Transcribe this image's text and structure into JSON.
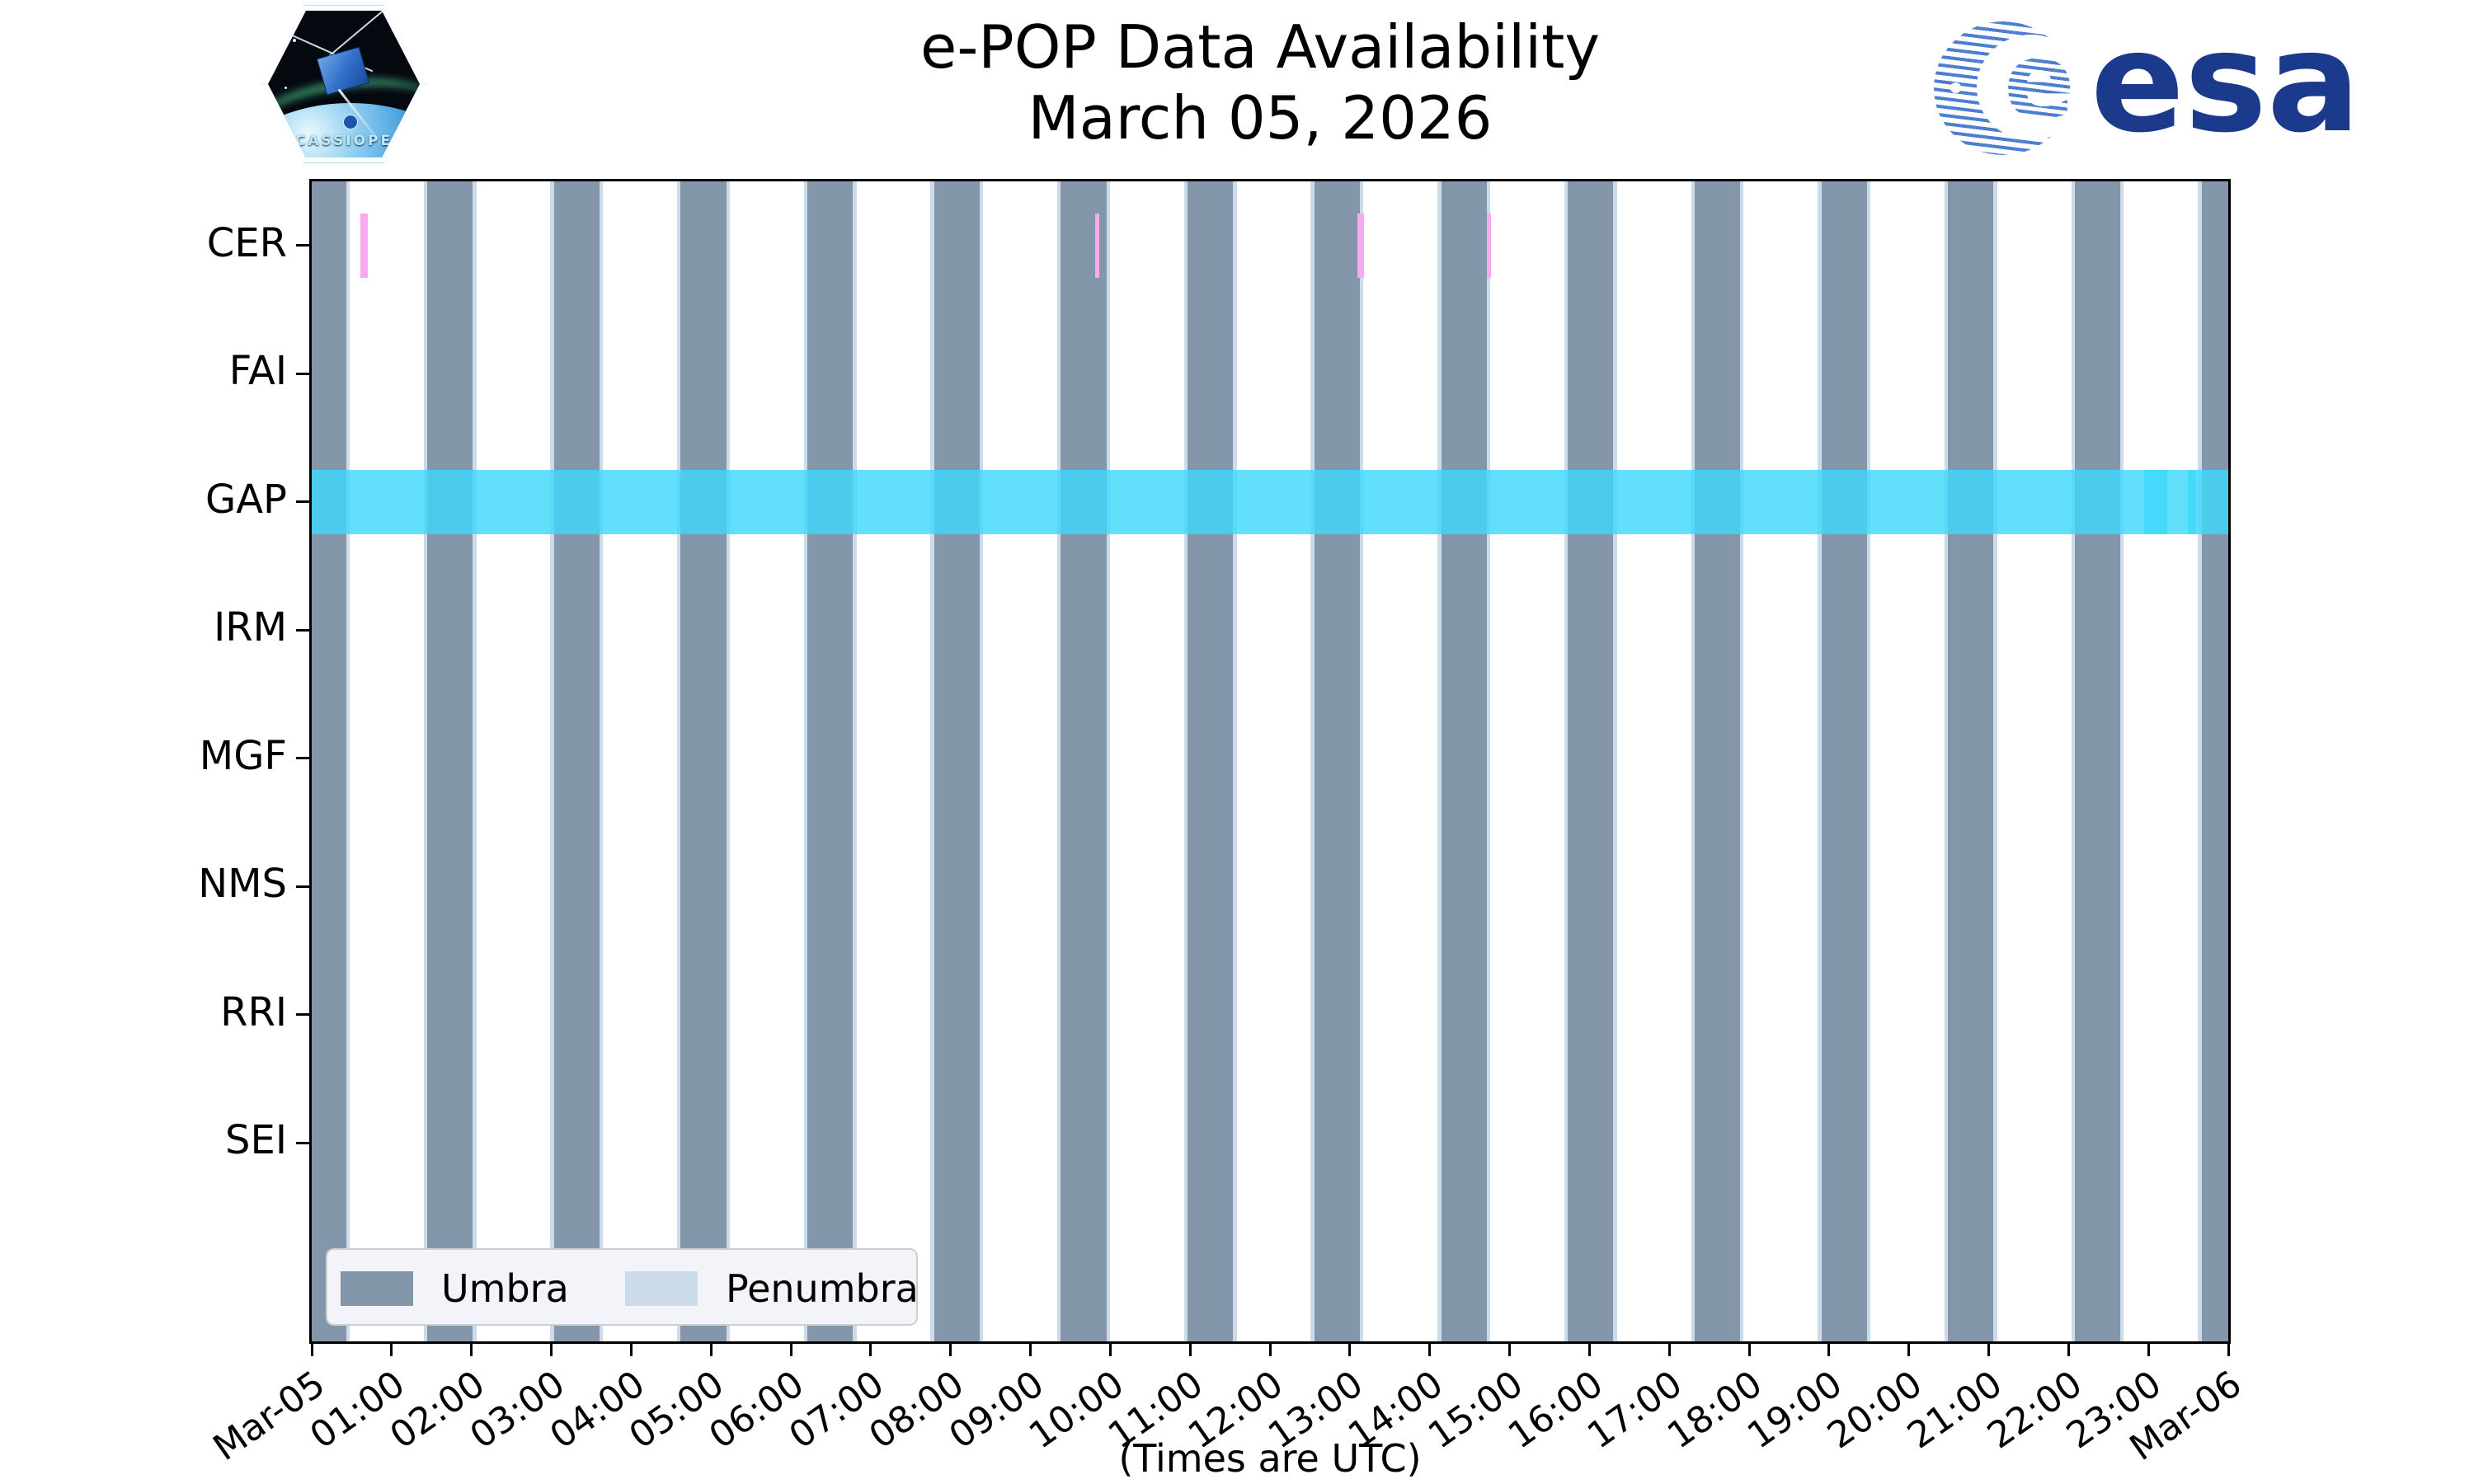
{
  "figure": {
    "title_line1": "e-POP Data Availability",
    "title_line2": "March 05, 2026",
    "footnote": "(Times are UTC)"
  },
  "logos": {
    "cassiope_wordmark": "CASSIOPE",
    "esa_wordmark": "esa",
    "esa_e": "e"
  },
  "theme": {
    "umbra": "#8496a9",
    "penumbra": "#ccdbe9",
    "gap_band": "rgba(64,216,250,0.82)",
    "cer_mark": "#f6aaf0",
    "axis": "#000000",
    "legend_bg": "#f2f4fa",
    "legend_border": "#cfcfcf",
    "esa_navy": "#1b3a8c",
    "esa_stripe": "#4d7fd0"
  },
  "chart_data": {
    "type": "timeline-availability",
    "title": "e-POP Data Availability — March 05, 2026",
    "x_axis": {
      "range_hours": [
        0,
        24
      ],
      "tick_labels": [
        "Mar-05",
        "01:00",
        "02:00",
        "03:00",
        "04:00",
        "05:00",
        "06:00",
        "07:00",
        "08:00",
        "09:00",
        "10:00",
        "11:00",
        "12:00",
        "13:00",
        "14:00",
        "15:00",
        "16:00",
        "17:00",
        "18:00",
        "19:00",
        "20:00",
        "21:00",
        "22:00",
        "23:00",
        "Mar-06"
      ],
      "note": "(Times are UTC)"
    },
    "rows": [
      "CER",
      "FAI",
      "GAP",
      "IRM",
      "MGF",
      "NMS",
      "RRI",
      "SEI"
    ],
    "legend": [
      {
        "label": "Umbra",
        "series": "umbra"
      },
      {
        "label": "Penumbra",
        "series": "penumbra"
      }
    ],
    "penumbra_edge_hours": 0.045,
    "umbra_intervals_hours": [
      [
        -0.14,
        0.43
      ],
      [
        1.447,
        2.017
      ],
      [
        3.034,
        3.604
      ],
      [
        4.621,
        5.191
      ],
      [
        6.208,
        6.778
      ],
      [
        7.795,
        8.365
      ],
      [
        9.382,
        9.952
      ],
      [
        10.969,
        11.539
      ],
      [
        12.556,
        13.126
      ],
      [
        14.143,
        14.713
      ],
      [
        15.73,
        16.3
      ],
      [
        17.317,
        17.887
      ],
      [
        18.904,
        19.474
      ],
      [
        20.491,
        21.061
      ],
      [
        22.078,
        22.648
      ],
      [
        23.665,
        24.235
      ]
    ],
    "gap_band": {
      "row": "GAP",
      "intervals": [
        [
          0,
          24
        ]
      ],
      "overlap_intervals": [
        [
          22.95,
          23.24
        ],
        [
          23.49,
          23.6
        ]
      ]
    },
    "cer_marks": {
      "row": "CER",
      "intervals": [
        [
          0.61,
          0.7
        ],
        [
          9.81,
          9.86
        ],
        [
          13.09,
          13.18
        ],
        [
          14.72,
          14.77
        ]
      ]
    }
  }
}
